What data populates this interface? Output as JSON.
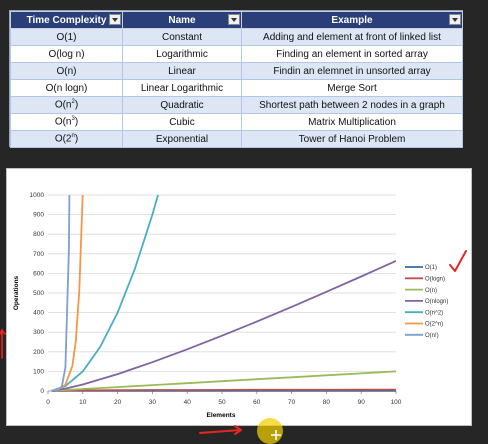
{
  "table": {
    "headers": [
      "Time Complexity",
      "Name",
      "Example"
    ],
    "rows": [
      {
        "complexity": "O(1)",
        "name": "Constant",
        "example": "Adding and element at front of linked list"
      },
      {
        "complexity": "O(log n)",
        "name": "Logarithmic",
        "example": "Finding an element in sorted array"
      },
      {
        "complexity": "O(n)",
        "name": "Linear",
        "example": "Findin an elemnet in unsorted array"
      },
      {
        "complexity": "O(n logn)",
        "name": "Linear Logarithmic",
        "example": "Merge Sort"
      },
      {
        "complexity_base": "O(n",
        "complexity_exp": "2",
        "complexity_close": ")",
        "name": "Quadratic",
        "example": "Shortest path between 2 nodes in a graph"
      },
      {
        "complexity_base": "O(n",
        "complexity_exp": "3",
        "complexity_close": ")",
        "name": "Cubic",
        "example": "Matrix Multiplication"
      },
      {
        "complexity_base": "O(2",
        "complexity_exp": "n",
        "complexity_close": ")",
        "name": "Exponential",
        "example": "Tower of Hanoi Problem"
      }
    ]
  },
  "chart_data": {
    "type": "line",
    "xlabel": "Elements",
    "ylabel": "Operations",
    "xlim": [
      0,
      100
    ],
    "ylim": [
      0,
      1000
    ],
    "x_ticks": [
      "0",
      "10",
      "20",
      "30",
      "40",
      "50",
      "60",
      "70",
      "80",
      "90",
      "100"
    ],
    "y_ticks": [
      "0",
      "100",
      "200",
      "300",
      "400",
      "500",
      "600",
      "700",
      "800",
      "900",
      "1000"
    ],
    "grid": "horizontal",
    "legend_position": "right",
    "series": [
      {
        "name": "O(1)",
        "color": "#2e6da4",
        "points": [
          [
            1,
            1
          ],
          [
            100,
            1
          ]
        ]
      },
      {
        "name": "O(logn)",
        "color": "#c0504d",
        "points": [
          [
            1,
            0
          ],
          [
            10,
            3.3
          ],
          [
            20,
            4.3
          ],
          [
            30,
            4.9
          ],
          [
            40,
            5.3
          ],
          [
            50,
            5.6
          ],
          [
            60,
            5.9
          ],
          [
            70,
            6.1
          ],
          [
            80,
            6.3
          ],
          [
            90,
            6.5
          ],
          [
            100,
            6.6
          ]
        ]
      },
      {
        "name": "O(n)",
        "color": "#9bbb59",
        "points": [
          [
            1,
            1
          ],
          [
            10,
            10
          ],
          [
            20,
            20
          ],
          [
            30,
            30
          ],
          [
            40,
            40
          ],
          [
            50,
            50
          ],
          [
            60,
            60
          ],
          [
            70,
            70
          ],
          [
            80,
            80
          ],
          [
            90,
            90
          ],
          [
            100,
            100
          ]
        ]
      },
      {
        "name": "O(nlogn)",
        "color": "#8064a2",
        "points": [
          [
            1,
            0
          ],
          [
            5,
            12
          ],
          [
            10,
            33
          ],
          [
            20,
            86
          ],
          [
            30,
            147
          ],
          [
            40,
            213
          ],
          [
            50,
            282
          ],
          [
            60,
            354
          ],
          [
            70,
            429
          ],
          [
            80,
            506
          ],
          [
            90,
            584
          ],
          [
            100,
            664
          ]
        ]
      },
      {
        "name": "O(n^2)",
        "color": "#4bacc6",
        "points": [
          [
            1,
            1
          ],
          [
            5,
            25
          ],
          [
            10,
            100
          ],
          [
            15,
            225
          ],
          [
            20,
            400
          ],
          [
            25,
            625
          ],
          [
            30,
            900
          ],
          [
            31.6,
            1000
          ]
        ]
      },
      {
        "name": "O(2^n)",
        "color": "#f79646",
        "points": [
          [
            1,
            2
          ],
          [
            3,
            8
          ],
          [
            5,
            32
          ],
          [
            7,
            128
          ],
          [
            8,
            256
          ],
          [
            9,
            512
          ],
          [
            9.97,
            1000
          ]
        ]
      },
      {
        "name": "O(n!)",
        "color": "#7f9fd0",
        "points": [
          [
            1,
            1
          ],
          [
            3,
            6
          ],
          [
            4,
            24
          ],
          [
            5,
            120
          ],
          [
            6,
            720
          ],
          [
            6.15,
            1000
          ]
        ]
      }
    ]
  },
  "overlay": {
    "annotation_color": "#e8261f",
    "cursor_color": "#f0d000"
  }
}
